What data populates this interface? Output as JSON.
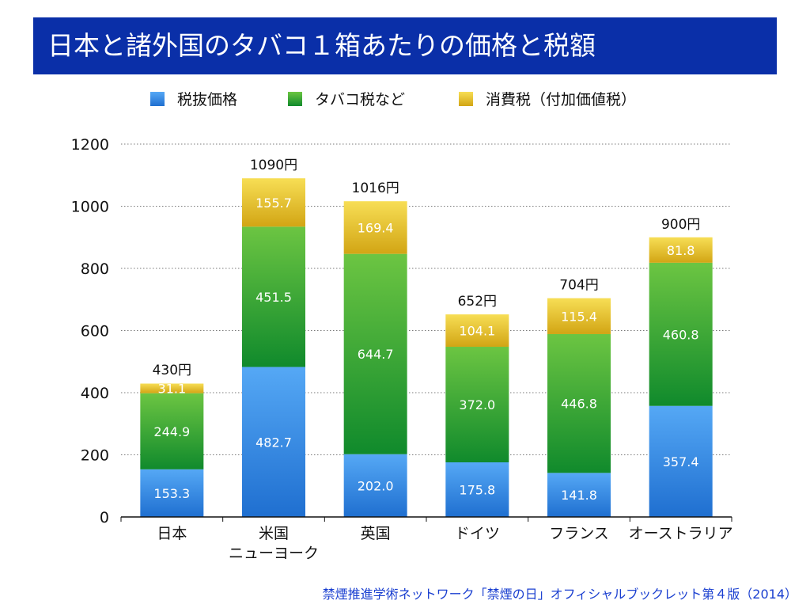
{
  "slide": {
    "title": "日本と諸外国のタバコ１箱あたりの価格と税額",
    "source": "禁煙推進学術ネットワーク「禁煙の日」オフィシャルブックレット第４版（2014）"
  },
  "chart_data": {
    "type": "bar",
    "stacked": true,
    "categories": [
      [
        "日本"
      ],
      [
        "米国",
        "ニューヨーク"
      ],
      [
        "英国"
      ],
      [
        "ドイツ"
      ],
      [
        "フランス"
      ],
      [
        "オーストラリア"
      ]
    ],
    "series": [
      {
        "name": "税抜価格",
        "color": "#3f94e6",
        "values": [
          153.3,
          482.7,
          202.0,
          175.8,
          141.8,
          357.4
        ],
        "labels": [
          "153.3",
          "482.7",
          "202.0",
          "175.8",
          "141.8",
          "357.4"
        ]
      },
      {
        "name": "タバコ税など",
        "color": "#2ea83a",
        "values": [
          244.9,
          451.5,
          644.7,
          372.0,
          446.8,
          460.8
        ],
        "labels": [
          "244.9",
          "451.5",
          "644.7",
          "372.0",
          "446.8",
          "460.8"
        ]
      },
      {
        "name": "消費税（付加価値税）",
        "color": "#e8c21e",
        "values": [
          31.1,
          155.7,
          169.4,
          104.1,
          115.4,
          81.8
        ],
        "labels": [
          "31.1",
          "155.7",
          "169.4",
          "104.1",
          "115.4",
          "81.8"
        ]
      }
    ],
    "totals": [
      430,
      1090,
      1016,
      652,
      704,
      900
    ],
    "total_labels": [
      "430円",
      "1090円",
      "1016円",
      "652円",
      "704円",
      "900円"
    ],
    "ylim": [
      0,
      1200
    ],
    "yticks": [
      0,
      200,
      400,
      600,
      800,
      1000,
      1200
    ],
    "grid": true,
    "grid_style": "dotted",
    "legend_position": "top"
  }
}
